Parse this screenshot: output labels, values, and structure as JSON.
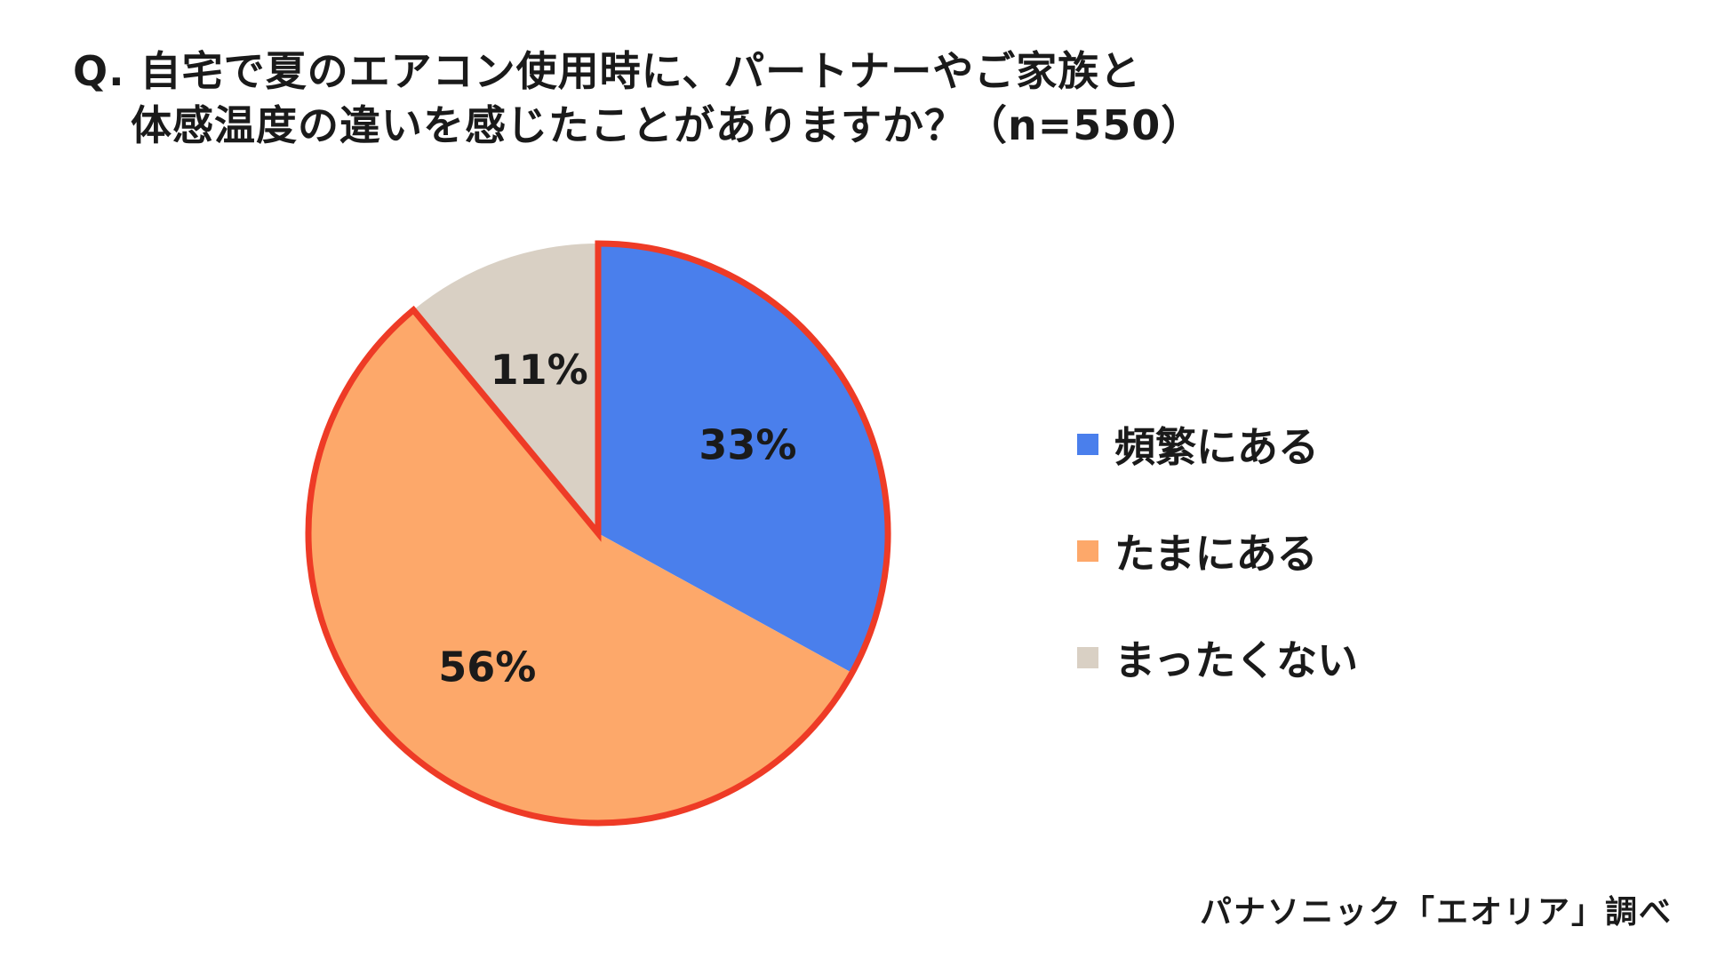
{
  "title": {
    "line1": "Q. 自宅で夏のエアコン使用時に、パートナーやご家族と",
    "line2": "体感温度の違いを感じたことがありますか？（n=550）"
  },
  "chart_data": {
    "type": "pie",
    "n": 550,
    "start_angle_deg": 0,
    "direction": "clockwise",
    "slices": [
      {
        "label": "頻繁にある",
        "value": 33,
        "display": "33%",
        "color": "#4a7fec"
      },
      {
        "label": "たまにある",
        "value": 56,
        "display": "56%",
        "color": "#fda86a"
      },
      {
        "label": "まったくない",
        "value": 11,
        "display": "11%",
        "color": "#d9d0c4"
      }
    ],
    "highlight": {
      "slices": [
        "頻繁にある",
        "たまにある"
      ],
      "outline_color": "#ee3b26"
    },
    "legend_position": "right"
  },
  "source": "パナソニック「エオリア」調べ"
}
